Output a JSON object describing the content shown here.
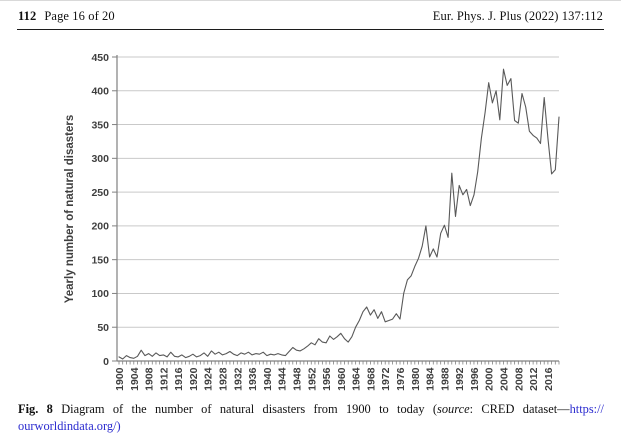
{
  "page": {
    "header": {
      "article_number": "112",
      "page_info": "Page 16 of 20",
      "journal_ref": "Eur. Phys. J. Plus (2022) 137:112"
    },
    "caption": {
      "fig_label": "Fig. 8",
      "body": "Diagram of the number of natural disasters from 1900 to today (",
      "source_word": "source",
      "after_source": ": CRED dataset—",
      "link_part1": "https://",
      "link_part2": "ourworldindata.org/)",
      "link_color": "#2b2bcf"
    }
  },
  "chart_data": {
    "type": "line",
    "title": "",
    "xlabel": "",
    "ylabel": "Yearly number of natural disasters",
    "x_min": 1900,
    "x_max": 2019,
    "ylim": [
      0,
      450
    ],
    "y_ticks": [
      0,
      50,
      100,
      150,
      200,
      250,
      300,
      350,
      400,
      450
    ],
    "x_tick_labels": [
      "1900",
      "1904",
      "1908",
      "1912",
      "1916",
      "1920",
      "1924",
      "1928",
      "1932",
      "1936",
      "1940",
      "1944",
      "1948",
      "1952",
      "1956",
      "1960",
      "1964",
      "1968",
      "1972",
      "1976",
      "1980",
      "1984",
      "1988",
      "1992",
      "1996",
      "2000",
      "2004",
      "2008",
      "2012",
      "2016"
    ],
    "x_tick_step": 4,
    "grid": "horizontal",
    "legend": "none",
    "line_color": "#595959",
    "grid_color": "#c9c9c9",
    "axis_color": "#808080",
    "tick_label_color": "#3f3f3f",
    "years": [
      1900,
      1901,
      1902,
      1903,
      1904,
      1905,
      1906,
      1907,
      1908,
      1909,
      1910,
      1911,
      1912,
      1913,
      1914,
      1915,
      1916,
      1917,
      1918,
      1919,
      1920,
      1921,
      1922,
      1923,
      1924,
      1925,
      1926,
      1927,
      1928,
      1929,
      1930,
      1931,
      1932,
      1933,
      1934,
      1935,
      1936,
      1937,
      1938,
      1939,
      1940,
      1941,
      1942,
      1943,
      1944,
      1945,
      1946,
      1947,
      1948,
      1949,
      1950,
      1951,
      1952,
      1953,
      1954,
      1955,
      1956,
      1957,
      1958,
      1959,
      1960,
      1961,
      1962,
      1963,
      1964,
      1965,
      1966,
      1967,
      1968,
      1969,
      1970,
      1971,
      1972,
      1973,
      1974,
      1975,
      1976,
      1977,
      1978,
      1979,
      1980,
      1981,
      1982,
      1983,
      1984,
      1985,
      1986,
      1987,
      1988,
      1989,
      1990,
      1991,
      1992,
      1993,
      1994,
      1995,
      1996,
      1997,
      1998,
      1999,
      2000,
      2001,
      2002,
      2003,
      2004,
      2005,
      2006,
      2007,
      2008,
      2009,
      2010,
      2011,
      2012,
      2013,
      2014,
      2015,
      2016,
      2017,
      2018,
      2019
    ],
    "values": [
      6,
      3,
      8,
      5,
      4,
      7,
      16,
      8,
      11,
      7,
      12,
      8,
      9,
      6,
      13,
      7,
      6,
      9,
      5,
      7,
      10,
      6,
      8,
      12,
      7,
      15,
      10,
      13,
      9,
      11,
      14,
      10,
      8,
      12,
      10,
      13,
      9,
      11,
      10,
      13,
      8,
      10,
      9,
      11,
      9,
      8,
      14,
      20,
      16,
      15,
      18,
      22,
      27,
      24,
      33,
      28,
      27,
      37,
      32,
      36,
      41,
      33,
      28,
      36,
      50,
      60,
      73,
      80,
      68,
      76,
      63,
      73,
      58,
      60,
      62,
      70,
      62,
      100,
      120,
      126,
      140,
      152,
      170,
      200,
      154,
      166,
      154,
      189,
      201,
      183,
      278,
      214,
      260,
      246,
      254,
      230,
      246,
      280,
      330,
      368,
      412,
      382,
      400,
      357,
      432,
      408,
      418,
      356,
      352,
      396,
      376,
      340,
      334,
      330,
      322,
      390,
      330,
      277,
      283,
      361
    ]
  }
}
